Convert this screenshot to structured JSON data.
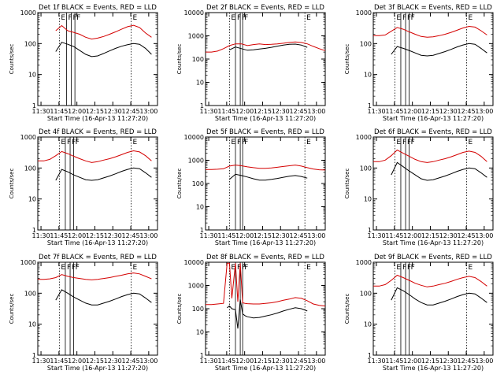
{
  "figure": {
    "time_labels": [
      "11:30",
      "11:45",
      "12:00",
      "12:15",
      "12:30",
      "12:45",
      "13:00"
    ],
    "start_time_label": "Start Time (16-Apr-13 11:27:20)",
    "ylabel": "Counts/sec"
  },
  "colors": {
    "events": "#000000",
    "lld": "#d40000",
    "markers": "#000000"
  },
  "chart_data": [
    {
      "type": "line",
      "detector": "1f",
      "title": "Det 1f BLACK = Events, RED = LLD",
      "xlabel": "Start Time (16-Apr-13 11:27:20)",
      "ylabel": "Counts/sec",
      "yscale": "log",
      "ylim": [
        1,
        1000
      ],
      "xlim_minutes": [
        0,
        100
      ],
      "y_ticks": [
        "1",
        "10",
        "100",
        "1000"
      ],
      "x_minutes": [
        15,
        20,
        25,
        30,
        35,
        40,
        45,
        50,
        55,
        60,
        65,
        70,
        75,
        80,
        85,
        90,
        95
      ],
      "series": [
        {
          "name": "BLACK = Events",
          "key": "events",
          "values": [
            55,
            110,
            95,
            80,
            60,
            45,
            38,
            40,
            48,
            58,
            70,
            82,
            92,
            100,
            95,
            70,
            45
          ]
        },
        {
          "name": "RED = LLD",
          "key": "lld",
          "values": [
            260,
            380,
            260,
            230,
            200,
            160,
            140,
            150,
            170,
            200,
            240,
            290,
            350,
            390,
            330,
            220,
            160
          ]
        }
      ],
      "markers": {
        "E_minutes": [
          18,
          78
        ],
        "F_minutes": [
          24,
          28,
          31
        ]
      }
    },
    {
      "type": "line",
      "detector": "2f",
      "title": "Det 2f BLACK = Events, RED = LLD",
      "xlabel": "Start Time (16-Apr-13 11:27:20)",
      "ylabel": "Counts/sec",
      "yscale": "log",
      "ylim": [
        1,
        10000
      ],
      "xlim_minutes": [
        0,
        100
      ],
      "y_ticks": [
        "1",
        "10",
        "100",
        "1000",
        "10000"
      ],
      "x_minutes": [
        0,
        5,
        10,
        15,
        20,
        25,
        30,
        35,
        40,
        45,
        50,
        55,
        60,
        65,
        70,
        75,
        80,
        85,
        90,
        95,
        100
      ],
      "series": [
        {
          "name": "BLACK = Events",
          "key": "events",
          "values": [
            null,
            null,
            null,
            null,
            250,
            330,
            280,
            240,
            250,
            270,
            290,
            320,
            360,
            400,
            430,
            440,
            400,
            320,
            null,
            null,
            null
          ]
        },
        {
          "name": "RED = LLD",
          "key": "lld",
          "values": [
            200,
            200,
            220,
            280,
            380,
            450,
            450,
            380,
            420,
            450,
            420,
            430,
            450,
            480,
            520,
            550,
            520,
            450,
            350,
            280,
            230
          ]
        }
      ],
      "markers": {
        "E_minutes": [
          20,
          83
        ],
        "F_minutes": [
          25,
          29,
          31
        ]
      }
    },
    {
      "type": "line",
      "detector": "3f",
      "title": "Det 3f BLACK = Events, RED = LLD",
      "xlabel": "Start Time (16-Apr-13 11:27:20)",
      "ylabel": "Counts/sec",
      "yscale": "log",
      "ylim": [
        1,
        1000
      ],
      "xlim_minutes": [
        0,
        100
      ],
      "y_ticks": [
        "1",
        "10",
        "100",
        "1000"
      ],
      "x_minutes": [
        0,
        5,
        10,
        15,
        20,
        25,
        30,
        35,
        40,
        45,
        50,
        55,
        60,
        65,
        70,
        75,
        80,
        85,
        90,
        95
      ],
      "series": [
        {
          "name": "BLACK = Events",
          "key": "events",
          "values": [
            null,
            null,
            null,
            45,
            80,
            70,
            60,
            50,
            42,
            40,
            42,
            48,
            55,
            65,
            78,
            90,
            100,
            95,
            70,
            50
          ]
        },
        {
          "name": "RED = LLD",
          "key": "lld",
          "values": [
            180,
            180,
            190,
            250,
            330,
            290,
            240,
            200,
            170,
            160,
            165,
            180,
            200,
            230,
            270,
            320,
            360,
            340,
            260,
            190
          ]
        }
      ],
      "markers": {
        "E_minutes": [
          18,
          78
        ],
        "F_minutes": [
          23,
          27,
          30
        ]
      }
    },
    {
      "type": "line",
      "detector": "4f",
      "title": "Det 4f BLACK = Events, RED = LLD",
      "xlabel": "Start Time (16-Apr-13 11:27:20)",
      "ylabel": "Counts/sec",
      "yscale": "log",
      "ylim": [
        1,
        1000
      ],
      "xlim_minutes": [
        0,
        100
      ],
      "y_ticks": [
        "1",
        "10",
        "100",
        "1000"
      ],
      "x_minutes": [
        0,
        5,
        10,
        15,
        20,
        25,
        30,
        35,
        40,
        45,
        50,
        55,
        60,
        65,
        70,
        75,
        80,
        85,
        90,
        95
      ],
      "series": [
        {
          "name": "BLACK = Events",
          "key": "events",
          "values": [
            null,
            null,
            null,
            40,
            90,
            75,
            60,
            50,
            42,
            40,
            42,
            48,
            55,
            65,
            78,
            90,
            100,
            95,
            70,
            50
          ]
        },
        {
          "name": "RED = LLD",
          "key": "lld",
          "values": [
            170,
            170,
            190,
            250,
            340,
            290,
            240,
            200,
            170,
            150,
            160,
            180,
            200,
            230,
            270,
            320,
            360,
            330,
            250,
            170
          ]
        }
      ],
      "markers": {
        "E_minutes": [
          18,
          78
        ],
        "F_minutes": [
          23,
          27,
          30
        ]
      }
    },
    {
      "type": "line",
      "detector": "5f",
      "title": "Det 5f BLACK = Events, RED = LLD",
      "xlabel": "Start Time (16-Apr-13 11:27:20)",
      "ylabel": "Counts/sec",
      "yscale": "log",
      "ylim": [
        1,
        10000
      ],
      "xlim_minutes": [
        0,
        100
      ],
      "y_ticks": [
        "1",
        "10",
        "100",
        "1000",
        "10000"
      ],
      "x_minutes": [
        0,
        5,
        10,
        15,
        20,
        25,
        30,
        35,
        40,
        45,
        50,
        55,
        60,
        65,
        70,
        75,
        80,
        85,
        90,
        95,
        100
      ],
      "series": [
        {
          "name": "BLACK = Events",
          "key": "events",
          "values": [
            null,
            null,
            null,
            null,
            150,
            250,
            220,
            190,
            160,
            140,
            140,
            150,
            165,
            185,
            205,
            220,
            200,
            170,
            null,
            null,
            null
          ]
        },
        {
          "name": "RED = LLD",
          "key": "lld",
          "values": [
            400,
            400,
            410,
            430,
            560,
            620,
            580,
            520,
            480,
            450,
            450,
            470,
            500,
            540,
            580,
            620,
            560,
            480,
            420,
            390,
            380
          ]
        }
      ],
      "markers": {
        "E_minutes": [
          20,
          83
        ],
        "F_minutes": [
          25,
          29,
          31
        ]
      }
    },
    {
      "type": "line",
      "detector": "6f",
      "title": "Det 6f BLACK = Events, RED = LLD",
      "xlabel": "Start Time (16-Apr-13 11:27:20)",
      "ylabel": "Counts/sec",
      "yscale": "log",
      "ylim": [
        1,
        1000
      ],
      "xlim_minutes": [
        0,
        100
      ],
      "y_ticks": [
        "1",
        "10",
        "100",
        "1000"
      ],
      "x_minutes": [
        0,
        5,
        10,
        15,
        20,
        25,
        30,
        35,
        40,
        45,
        50,
        55,
        60,
        65,
        70,
        75,
        80,
        85,
        90,
        95
      ],
      "series": [
        {
          "name": "BLACK = Events",
          "key": "events",
          "values": [
            null,
            null,
            null,
            60,
            150,
            110,
            80,
            60,
            45,
            40,
            42,
            48,
            55,
            65,
            78,
            90,
            100,
            95,
            70,
            50
          ]
        },
        {
          "name": "RED = LLD",
          "key": "lld",
          "values": [
            160,
            160,
            180,
            250,
            380,
            300,
            240,
            190,
            160,
            150,
            160,
            180,
            200,
            230,
            270,
            320,
            350,
            320,
            240,
            160
          ]
        }
      ],
      "markers": {
        "E_minutes": [
          18,
          78
        ],
        "F_minutes": [
          23,
          27,
          30
        ]
      }
    },
    {
      "type": "line",
      "detector": "7f",
      "title": "Det 7f BLACK = Events, RED = LLD",
      "xlabel": "Start Time (16-Apr-13 11:27:20)",
      "ylabel": "Counts/sec",
      "yscale": "log",
      "ylim": [
        1,
        1000
      ],
      "xlim_minutes": [
        0,
        100
      ],
      "y_ticks": [
        "1",
        "10",
        "100",
        "1000"
      ],
      "x_minutes": [
        0,
        5,
        10,
        15,
        20,
        25,
        30,
        35,
        40,
        45,
        50,
        55,
        60,
        65,
        70,
        75,
        80,
        85,
        90,
        95
      ],
      "series": [
        {
          "name": "BLACK = Events",
          "key": "events",
          "values": [
            null,
            null,
            null,
            60,
            130,
            100,
            75,
            60,
            48,
            42,
            42,
            48,
            55,
            65,
            78,
            90,
            100,
            95,
            70,
            50
          ]
        },
        {
          "name": "RED = LLD",
          "key": "lld",
          "values": [
            280,
            280,
            290,
            320,
            400,
            350,
            320,
            300,
            280,
            270,
            280,
            300,
            320,
            350,
            380,
            420,
            450,
            420,
            350,
            290
          ]
        }
      ],
      "markers": {
        "E_minutes": [
          18,
          78
        ],
        "F_minutes": [
          23,
          27,
          30
        ]
      }
    },
    {
      "type": "line",
      "detector": "8f",
      "title": "Det 8f BLACK = Events, RED = LLD",
      "xlabel": "Start Time (16-Apr-13 11:27:20)",
      "ylabel": "Counts/sec",
      "yscale": "log",
      "ylim": [
        1,
        10000
      ],
      "xlim_minutes": [
        0,
        100
      ],
      "y_ticks": [
        "1",
        "10",
        "100",
        "1000",
        "10000"
      ],
      "x_minutes": [
        0,
        5,
        10,
        15,
        18,
        20,
        22,
        25,
        27,
        29,
        31,
        33,
        35,
        40,
        45,
        50,
        55,
        60,
        65,
        70,
        75,
        80,
        85,
        90,
        95,
        100
      ],
      "series": [
        {
          "name": "BLACK = Events",
          "key": "events",
          "values": [
            null,
            null,
            null,
            null,
            110,
            130,
            100,
            90,
            14,
            250,
            60,
            50,
            45,
            40,
            42,
            48,
            55,
            65,
            80,
            95,
            110,
            100,
            80,
            null,
            null,
            null
          ]
        },
        {
          "name": "RED = LLD",
          "key": "lld",
          "values": [
            150,
            150,
            160,
            170,
            9000,
            9000,
            280,
            9000,
            200,
            9000,
            180,
            170,
            165,
            160,
            160,
            170,
            180,
            200,
            230,
            260,
            300,
            280,
            220,
            160,
            140,
            130
          ]
        }
      ],
      "markers": {
        "E_minutes": [
          20,
          83
        ],
        "F_minutes": [
          25,
          29,
          31
        ]
      }
    },
    {
      "type": "line",
      "detector": "9f",
      "title": "Det 9f BLACK = Events, RED = LLD",
      "xlabel": "Start Time (16-Apr-13 11:27:20)",
      "ylabel": "Counts/sec",
      "yscale": "log",
      "ylim": [
        1,
        1000
      ],
      "xlim_minutes": [
        0,
        100
      ],
      "y_ticks": [
        "1",
        "10",
        "100",
        "1000"
      ],
      "x_minutes": [
        0,
        5,
        10,
        15,
        20,
        25,
        30,
        35,
        40,
        45,
        50,
        55,
        60,
        65,
        70,
        75,
        80,
        85,
        90,
        95
      ],
      "series": [
        {
          "name": "BLACK = Events",
          "key": "events",
          "values": [
            null,
            null,
            null,
            60,
            150,
            120,
            90,
            65,
            50,
            42,
            42,
            48,
            55,
            65,
            78,
            90,
            100,
            95,
            70,
            50
          ]
        },
        {
          "name": "RED = LLD",
          "key": "lld",
          "values": [
            170,
            170,
            190,
            260,
            380,
            320,
            260,
            210,
            180,
            160,
            170,
            190,
            210,
            240,
            280,
            320,
            350,
            320,
            240,
            170
          ]
        }
      ],
      "markers": {
        "E_minutes": [
          18,
          78
        ],
        "F_minutes": [
          23,
          27,
          30
        ]
      }
    }
  ]
}
